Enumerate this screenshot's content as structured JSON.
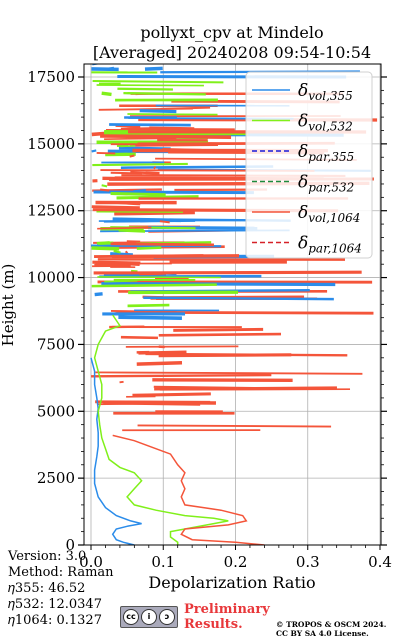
{
  "chart_data": {
    "type": "line",
    "title_line1": "pollyxt_cpv at Mindelo",
    "title_line2": "[Averaged] 20240208 09:54-10:54",
    "xlabel": "Depolarization Ratio",
    "ylabel": "Height (m)",
    "xlim": [
      0.0,
      0.4
    ],
    "ylim": [
      0,
      18000
    ],
    "x_ticks": [
      "0.0",
      "0.1",
      "0.2",
      "0.3",
      "0.4"
    ],
    "y_ticks": [
      "0",
      "2500",
      "5000",
      "7500",
      "10000",
      "12500",
      "15000",
      "17500"
    ],
    "x_tick_values": [
      0,
      0.1,
      0.2,
      0.3,
      0.4
    ],
    "y_tick_values": [
      0,
      2500,
      5000,
      7500,
      10000,
      12500,
      15000,
      17500
    ],
    "grid": true,
    "legend_position": "top-right",
    "legend": [
      {
        "key": "vol355",
        "base": "δ",
        "sub": "vol,355",
        "color": "#2b8cea",
        "dash": false
      },
      {
        "key": "vol532",
        "base": "δ",
        "sub": "vol,532",
        "color": "#80f01a",
        "dash": false
      },
      {
        "key": "par355",
        "base": "δ",
        "sub": "par,355",
        "color": "#1a1ad9",
        "dash": true
      },
      {
        "key": "par532",
        "base": "δ",
        "sub": "par,532",
        "color": "#1d8b3c",
        "dash": true
      },
      {
        "key": "vol1064",
        "base": "δ",
        "sub": "vol,1064",
        "color": "#f4553a",
        "dash": false
      },
      {
        "key": "par1064",
        "base": "δ",
        "sub": "par,1064",
        "color": "#d62128",
        "dash": true
      }
    ],
    "series": [
      {
        "name": "vol355",
        "color": "#2b8cea",
        "points": [
          [
            0.06,
            0
          ],
          [
            0.045,
            100
          ],
          [
            0.035,
            200
          ],
          [
            0.03,
            400
          ],
          [
            0.035,
            600
          ],
          [
            0.05,
            700
          ],
          [
            0.07,
            800
          ],
          [
            0.055,
            900
          ],
          [
            0.035,
            1100
          ],
          [
            0.02,
            1400
          ],
          [
            0.01,
            1800
          ],
          [
            0.005,
            2300
          ],
          [
            0.005,
            2800
          ],
          [
            0.008,
            3300
          ],
          [
            0.01,
            3700
          ],
          [
            0.01,
            4200
          ],
          [
            0.008,
            4700
          ],
          [
            0.01,
            5100
          ],
          [
            0.008,
            5500
          ],
          [
            0.005,
            6000
          ],
          [
            0.005,
            6500
          ],
          [
            0.0,
            7000
          ]
        ]
      },
      {
        "name": "vol532",
        "color": "#80f01a",
        "points": [
          [
            0.12,
            0
          ],
          [
            0.12,
            100
          ],
          [
            0.11,
            300
          ],
          [
            0.11,
            500
          ],
          [
            0.14,
            650
          ],
          [
            0.17,
            800
          ],
          [
            0.19,
            900
          ],
          [
            0.17,
            1000
          ],
          [
            0.13,
            1100
          ],
          [
            0.09,
            1300
          ],
          [
            0.06,
            1500
          ],
          [
            0.05,
            1800
          ],
          [
            0.06,
            2100
          ],
          [
            0.07,
            2400
          ],
          [
            0.06,
            2700
          ],
          [
            0.04,
            2900
          ],
          [
            0.025,
            3200
          ],
          [
            0.02,
            3600
          ],
          [
            0.015,
            4000
          ],
          [
            0.012,
            4500
          ],
          [
            0.01,
            5000
          ],
          [
            0.015,
            5500
          ],
          [
            0.015,
            6000
          ],
          [
            0.01,
            6500
          ],
          [
            0.005,
            7000
          ],
          [
            0.01,
            7500
          ],
          [
            0.02,
            8000
          ],
          [
            0.04,
            8200
          ],
          [
            0.03,
            8600
          ]
        ]
      },
      {
        "name": "vol1064",
        "color": "#f4553a",
        "points": [
          [
            0.24,
            0
          ],
          [
            0.2,
            100
          ],
          [
            0.14,
            200
          ],
          [
            0.125,
            400
          ],
          [
            0.13,
            600
          ],
          [
            0.19,
            750
          ],
          [
            0.215,
            900
          ],
          [
            0.21,
            1100
          ],
          [
            0.18,
            1300
          ],
          [
            0.13,
            1500
          ],
          [
            0.125,
            1800
          ],
          [
            0.13,
            2100
          ],
          [
            0.125,
            2400
          ],
          [
            0.13,
            2700
          ],
          [
            0.12,
            3000
          ],
          [
            0.11,
            3400
          ],
          [
            0.08,
            3700
          ],
          [
            0.06,
            3900
          ],
          [
            0.03,
            4100
          ]
        ]
      }
    ],
    "noise_bands": [
      {
        "series": "vol1064",
        "ymin": 4200,
        "ymax": 17000,
        "count": 80,
        "xmin": 0.0,
        "xmax": 0.4
      },
      {
        "series": "vol355",
        "ymin": 8500,
        "ymax": 18000,
        "count": 40,
        "xmin": 0.0,
        "xmax": 0.4
      },
      {
        "series": "vol532",
        "ymin": 8500,
        "ymax": 18000,
        "count": 40,
        "xmin": 0.0,
        "xmax": 0.22
      },
      {
        "series": "vol1064",
        "ymin": 10000,
        "ymax": 15500,
        "count": 35,
        "xmin": 0.0,
        "xmax": 0.4
      }
    ]
  },
  "meta": {
    "version": "Version: 3.0",
    "method": "Method: Raman",
    "eta355": "𝜂355:  46.52",
    "eta532": "𝜂532: 12.0347",
    "eta1064": "𝜂1064: 0.1327"
  },
  "footer": {
    "prelim_line1": "Preliminary",
    "prelim_line2": "Results.",
    "copyright_line1": "© TROPOS & OSCM 2024.",
    "copyright_line2": "CC BY SA 4.0 License."
  },
  "colors": {
    "preliminary": "#e8373a"
  }
}
